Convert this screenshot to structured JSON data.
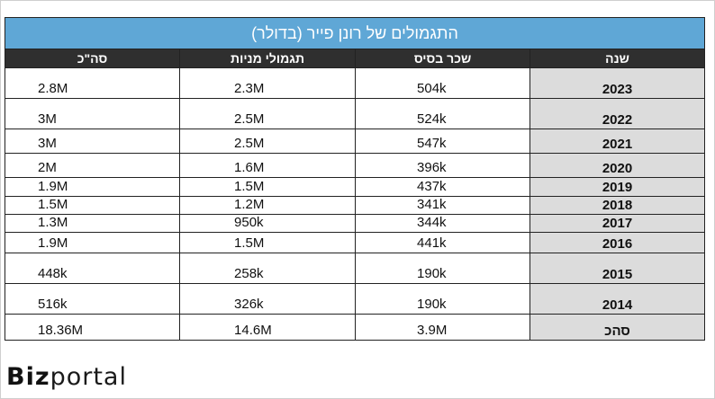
{
  "table": {
    "title": "התגמולים של רונן פייר (בדולר)",
    "headers": {
      "year": "שנה",
      "base_salary": "שכר בסיס",
      "stock_rewards": "תגמולי מניות",
      "total": "סה\"כ"
    },
    "rows": [
      {
        "year": "2023",
        "base_salary": "504k",
        "stock_rewards": "2.3M",
        "total": "2.8M"
      },
      {
        "year": "2022",
        "base_salary": "524k",
        "stock_rewards": "2.5M",
        "total": "3M"
      },
      {
        "year": "2021",
        "base_salary": "547k",
        "stock_rewards": "2.5M",
        "total": "3M"
      },
      {
        "year": "2020",
        "base_salary": "396k",
        "stock_rewards": "1.6M",
        "total": "2M"
      },
      {
        "year": "2019",
        "base_salary": "437k",
        "stock_rewards": "1.5M",
        "total": "1.9M"
      },
      {
        "year": "2018",
        "base_salary": "341k",
        "stock_rewards": "1.2M",
        "total": "1.5M"
      },
      {
        "year": "2017",
        "base_salary": "344k",
        "stock_rewards": "950k",
        "total": "1.3M"
      },
      {
        "year": "2016",
        "base_salary": "441k",
        "stock_rewards": "1.5M",
        "total": "1.9M"
      },
      {
        "year": "2015",
        "base_salary": "190k",
        "stock_rewards": "258k",
        "total": "448k"
      },
      {
        "year": "2014",
        "base_salary": "190k",
        "stock_rewards": "326k",
        "total": "516k"
      },
      {
        "year": "סהכ",
        "base_salary": "3.9M",
        "stock_rewards": "14.6M",
        "total": "18.36M"
      }
    ]
  },
  "logo": {
    "brand_bold": "Biz",
    "brand_light": "portal"
  }
}
